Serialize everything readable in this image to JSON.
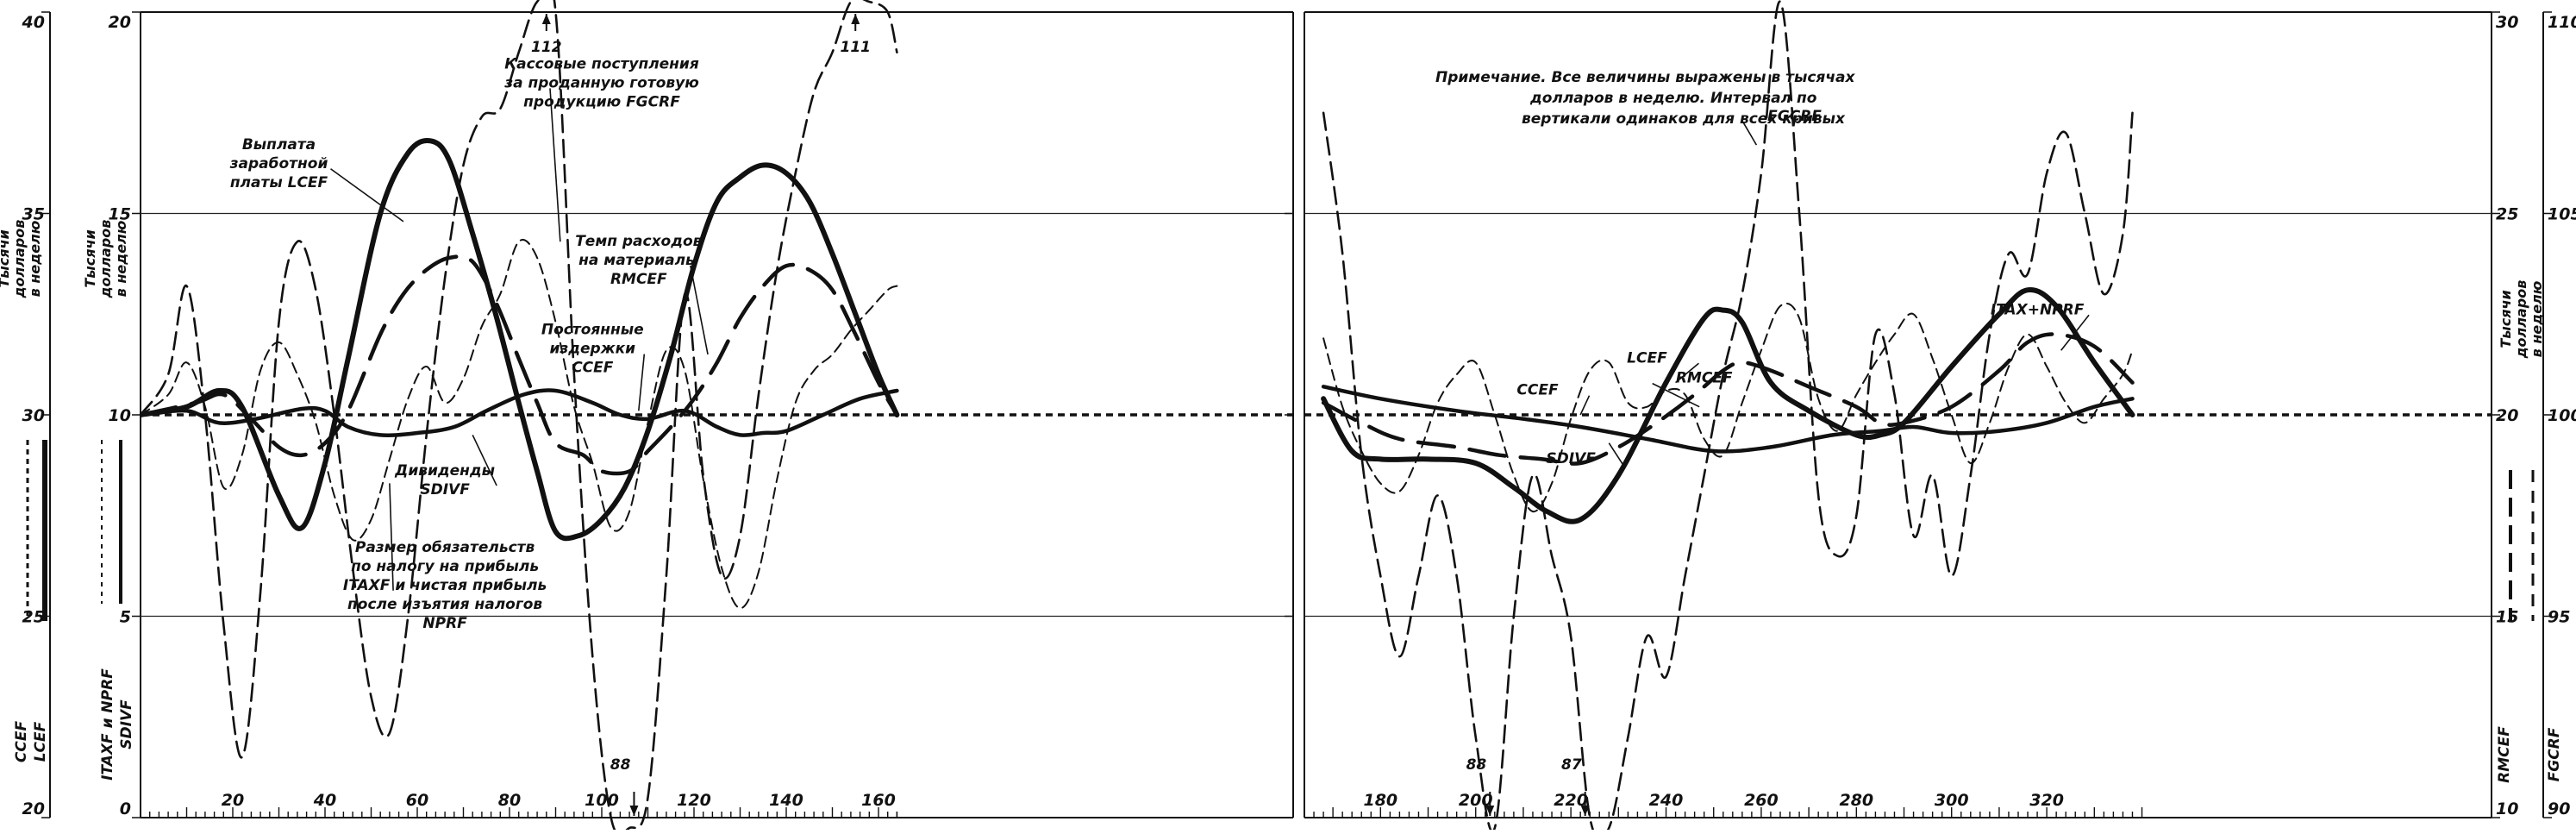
{
  "chart_data": {
    "type": "line",
    "title": "",
    "note_lines": [
      "Примечание. Все величины выражены в тысячах",
      "долларов в неделю. Интервал по",
      "вертикали одинаков для всех кривых"
    ],
    "x_ticks": [
      "20",
      "40",
      "60",
      "80",
      "100",
      "120",
      "140",
      "160",
      "180",
      "200",
      "220",
      "240",
      "260",
      "280",
      "300",
      "320"
    ],
    "xlim": [
      0,
      340
    ],
    "axes_left": [
      {
        "ticks": [
          "40",
          "35",
          "30",
          "25",
          "20"
        ],
        "ylim": [
          20,
          40
        ],
        "units": [
          "Тысячи",
          "долларов",
          "в неделю"
        ],
        "names": [
          "CCEF",
          "LCEF"
        ]
      },
      {
        "ticks": [
          "20",
          "15",
          "10",
          "5",
          "0"
        ],
        "ylim": [
          0,
          20
        ],
        "units": [
          "Тысячи",
          "долларов",
          "в неделю"
        ],
        "names": [
          "ITAXF и NPRF",
          "SDIVF"
        ]
      }
    ],
    "axes_right": [
      {
        "ticks": [
          "30",
          "25",
          "20",
          "15",
          "10"
        ],
        "ylim": [
          10,
          30
        ],
        "units": [
          "Тысячи",
          "долларов",
          "в неделю"
        ],
        "names": [
          "RMCEF"
        ]
      },
      {
        "ticks": [
          "110",
          "105",
          "100",
          "95",
          "90"
        ],
        "ylim": [
          90,
          110
        ],
        "names": [
          "FGCRF"
        ]
      }
    ],
    "offscale_labels": [
      {
        "text": "112",
        "x": 88,
        "y": 112,
        "axis": "FGCRF"
      },
      {
        "text": "111",
        "x": 155,
        "y": 111,
        "axis": "FGCRF"
      },
      {
        "text": "88",
        "x": 107,
        "y": 88,
        "axis": "FGCRF"
      },
      {
        "text": "88",
        "x": 203,
        "y": 88,
        "axis": "FGCRF"
      },
      {
        "text": "87",
        "x": 223,
        "y": 87,
        "axis": "FGCRF"
      }
    ],
    "annotations": [
      {
        "lines": [
          "Выплата",
          "заработной",
          "платы LCEF"
        ],
        "x": 30,
        "y": 16.6,
        "target": [
          57,
          14.8
        ]
      },
      {
        "lines": [
          "Кассовые поступления",
          "за проданную готовую",
          "продукцию FGCRF"
        ],
        "x": 100,
        "y": 18.6,
        "target": [
          91,
          14.3
        ]
      },
      {
        "lines": [
          "Темп расходов",
          "на материалы",
          "RMCEF"
        ],
        "x": 108,
        "y": 14.2,
        "target": [
          123,
          11.5
        ]
      },
      {
        "lines": [
          "Постоянные",
          "издержки",
          "CCEF"
        ],
        "x": 98,
        "y": 12.0,
        "target": [
          108,
          10.1
        ]
      },
      {
        "lines": [
          "Дивиденды",
          "SDIVF"
        ],
        "x": 66,
        "y": 8.5,
        "target": [
          72,
          9.5
        ]
      },
      {
        "lines": [
          "Размер обязательств",
          "по налогу на прибыль",
          "ITAXF и чистая прибыль",
          "после изъятия налогов",
          "NPRF"
        ],
        "x": 66,
        "y": 6.6,
        "target": [
          54,
          8.3
        ]
      },
      {
        "lines": [
          "FGCRF"
        ],
        "x": 267,
        "y": 17.3,
        "target": [
          259,
          16.7
        ]
      },
      {
        "lines": [
          "LCEF"
        ],
        "x": 236,
        "y": 11.3,
        "target": [
          242,
          10.8
        ]
      },
      {
        "lines": [
          "RMCEF"
        ],
        "x": 248,
        "y": 10.8,
        "target": [
          247,
          10.2
        ]
      },
      {
        "lines": [
          "CCEF"
        ],
        "x": 213,
        "y": 10.5,
        "target": [
          222,
          10.0
        ]
      },
      {
        "lines": [
          "SDIVF"
        ],
        "x": 220,
        "y": 8.8,
        "target": [
          228,
          9.3
        ]
      },
      {
        "lines": [
          "ITAX+NPRF"
        ],
        "x": 318,
        "y": 12.5,
        "target": [
          323,
          11.6
        ]
      }
    ],
    "series": [
      {
        "name": "LCEF",
        "axis": "CCEF/LCEF",
        "style": "thick-solid",
        "x": [
          0,
          10,
          17,
          22,
          30,
          35,
          40,
          45,
          52,
          58,
          63,
          67,
          72,
          77,
          82,
          86,
          90,
          95,
          100,
          105,
          110,
          115,
          120,
          125,
          130,
          135,
          140,
          145,
          150,
          155,
          160,
          164,
          168,
          174,
          180,
          190,
          200,
          208,
          215,
          222,
          230,
          240,
          248,
          252,
          256,
          262,
          270,
          280,
          285,
          290,
          300,
          310,
          316,
          322,
          330,
          338
        ],
        "y": [
          30,
          30.2,
          30.6,
          30.2,
          28,
          27.2,
          28.8,
          31.4,
          35,
          36.5,
          36.8,
          36.3,
          34.5,
          32.5,
          30.3,
          28.6,
          27.1,
          27.0,
          27.4,
          28.2,
          29.6,
          31.5,
          33.7,
          35.3,
          35.9,
          36.2,
          36.0,
          35.3,
          34.0,
          32.5,
          31.0,
          30.0,
          30.4,
          29.1,
          28.9,
          28.9,
          28.8,
          28.2,
          27.6,
          27.4,
          28.5,
          30.8,
          32.4,
          32.6,
          32.3,
          30.8,
          30.1,
          29.5,
          29.5,
          29.8,
          31.2,
          32.5,
          33.1,
          32.7,
          31.3,
          30.0
        ]
      },
      {
        "name": "CCEF",
        "axis": "CCEF/LCEF",
        "style": "short-dash",
        "x": [
          0,
          340
        ],
        "y": [
          30,
          30
        ]
      },
      {
        "name": "RMCEF",
        "axis": "RMCEF",
        "style": "long-dash",
        "x": [
          0,
          12,
          18,
          24,
          30,
          35,
          40,
          45,
          52,
          57,
          62,
          67,
          72,
          77,
          82,
          86,
          90,
          96,
          100,
          106,
          110,
          115,
          120,
          125,
          130,
          135,
          140,
          145,
          150,
          155,
          160,
          164,
          168,
          176,
          184,
          196,
          205,
          214,
          222,
          230,
          238,
          246,
          252,
          256,
          262,
          270,
          280,
          285,
          290,
          300,
          310,
          316,
          322,
          330,
          338
        ],
        "y": [
          20,
          20.3,
          20.5,
          19.9,
          19.2,
          19.0,
          19.3,
          20.1,
          22.0,
          23.0,
          23.6,
          23.9,
          23.8,
          22.8,
          21.4,
          20.3,
          19.3,
          19.0,
          18.6,
          18.6,
          19.1,
          19.7,
          20.4,
          21.3,
          22.4,
          23.2,
          23.7,
          23.6,
          23.1,
          22.0,
          20.8,
          20.0,
          20.3,
          19.8,
          19.4,
          19.2,
          19.0,
          18.9,
          18.8,
          19.2,
          19.8,
          20.5,
          21.1,
          21.3,
          21.1,
          20.7,
          20.2,
          19.8,
          19.8,
          20.2,
          21.1,
          21.8,
          22.0,
          21.7,
          20.8
        ]
      },
      {
        "name": "SDIVF",
        "axis": "ITAXF/SDIVF",
        "style": "medium-solid",
        "x": [
          0,
          10,
          17,
          25,
          35,
          40,
          45,
          52,
          60,
          68,
          75,
          83,
          90,
          98,
          104,
          110,
          118,
          125,
          130,
          135,
          140,
          148,
          156,
          164,
          168,
          180,
          196,
          210,
          222,
          236,
          250,
          262,
          275,
          285,
          292,
          300,
          310,
          320,
          330,
          338
        ],
        "y": [
          10,
          10.1,
          9.8,
          9.9,
          10.15,
          10.1,
          9.7,
          9.5,
          9.55,
          9.7,
          10.1,
          10.5,
          10.6,
          10.3,
          10.0,
          9.9,
          10.1,
          9.7,
          9.5,
          9.55,
          9.6,
          10.0,
          10.4,
          10.6,
          10.7,
          10.4,
          10.1,
          9.9,
          9.7,
          9.4,
          9.1,
          9.2,
          9.5,
          9.6,
          9.7,
          9.55,
          9.6,
          9.8,
          10.2,
          10.4
        ]
      },
      {
        "name": "ITAXF и NPRF",
        "axis": "ITAXF/SDIVF",
        "style": "thin-dash",
        "x": [
          0,
          6,
          10,
          14,
          18,
          22,
          26,
          30,
          34,
          38,
          42,
          46,
          50,
          54,
          58,
          62,
          66,
          70,
          74,
          78,
          82,
          86,
          90,
          94,
          98,
          102,
          106,
          110,
          114,
          118,
          122,
          126,
          130,
          134,
          138,
          142,
          146,
          150,
          154,
          158,
          162,
          164,
          168,
          172,
          176,
          180,
          184,
          188,
          192,
          196,
          200,
          204,
          208,
          212,
          216,
          220,
          224,
          228,
          232,
          236,
          240,
          244,
          248,
          252,
          256,
          260,
          264,
          268,
          272,
          276,
          280,
          284,
          288,
          292,
          296,
          300,
          304,
          308,
          312,
          316,
          320,
          324,
          328,
          332,
          336,
          338
        ],
        "y": [
          10,
          10.5,
          11.3,
          10.2,
          8.2,
          9.0,
          11.1,
          11.8,
          11.0,
          9.8,
          8.0,
          6.9,
          7.4,
          8.9,
          10.4,
          11.2,
          10.3,
          10.9,
          12.2,
          13.0,
          14.3,
          13.9,
          12.3,
          10.2,
          8.8,
          7.2,
          7.6,
          9.8,
          11.6,
          11.1,
          8.4,
          6.2,
          5.2,
          6.1,
          8.4,
          10.3,
          11.1,
          11.5,
          12.1,
          12.6,
          13.1,
          13.2,
          11.9,
          10.2,
          9.1,
          8.3,
          8.1,
          9.0,
          10.3,
          11.0,
          11.3,
          10.0,
          8.5,
          7.6,
          8.3,
          9.9,
          11.1,
          11.3,
          10.3,
          10.2,
          10.6,
          10.5,
          9.4,
          9.0,
          10.3,
          11.6,
          12.7,
          12.4,
          10.4,
          9.6,
          10.5,
          11.3,
          12.0,
          12.5,
          11.4,
          10.0,
          8.8,
          9.8,
          11.2,
          12.0,
          11.2,
          10.3,
          9.8,
          10.4,
          11.0,
          11.6
        ]
      },
      {
        "name": "FGCRF",
        "axis": "FGCRF",
        "style": "dash",
        "x": [
          0,
          6,
          10,
          14,
          18,
          22,
          26,
          30,
          34,
          38,
          42,
          46,
          50,
          54,
          58,
          62,
          66,
          70,
          74,
          78,
          82,
          86,
          90,
          94,
          98,
          102,
          106,
          110,
          114,
          118,
          122,
          126,
          130,
          134,
          138,
          142,
          146,
          150,
          154,
          158,
          162,
          164,
          168,
          172,
          176,
          180,
          184,
          188,
          192,
          196,
          200,
          204,
          208,
          212,
          216,
          220,
          224,
          228,
          232,
          236,
          240,
          244,
          248,
          252,
          256,
          260,
          264,
          268,
          272,
          276,
          280,
          284,
          288,
          292,
          296,
          300,
          304,
          308,
          312,
          316,
          320,
          324,
          328,
          332,
          336,
          338
        ],
        "y": [
          100,
          101.0,
          103.2,
          100.0,
          94.8,
          91.5,
          95.6,
          102.3,
          104.3,
          103.1,
          100.0,
          96.2,
          93.0,
          92.1,
          95.0,
          99.5,
          103.4,
          106.2,
          107.4,
          107.6,
          109.0,
          113.0,
          110.0,
          101.0,
          94.0,
          90.0,
          88.0,
          90.5,
          96.0,
          103.0,
          98.5,
          96.0,
          97.0,
          100.5,
          103.6,
          106.0,
          108.0,
          109.0,
          110.6,
          111.0,
          110.0,
          109.0,
          107.5,
          104.0,
          99.0,
          96.0,
          94.0,
          96.0,
          98.0,
          96.0,
          92.0,
          88.0,
          95.0,
          98.5,
          96.5,
          94.5,
          90.0,
          87.0,
          92.0,
          94.5,
          93.5,
          96.0,
          98.5,
          101.0,
          103.0,
          106.0,
          110.5,
          105.0,
          98.0,
          96.5,
          97.5,
          102.0,
          100.5,
          97.0,
          98.5,
          96.0,
          98.5,
          102.0,
          104.0,
          103.5,
          106.0,
          107.0,
          105.0,
          103.0,
          104.5,
          107.5
        ]
      }
    ]
  }
}
